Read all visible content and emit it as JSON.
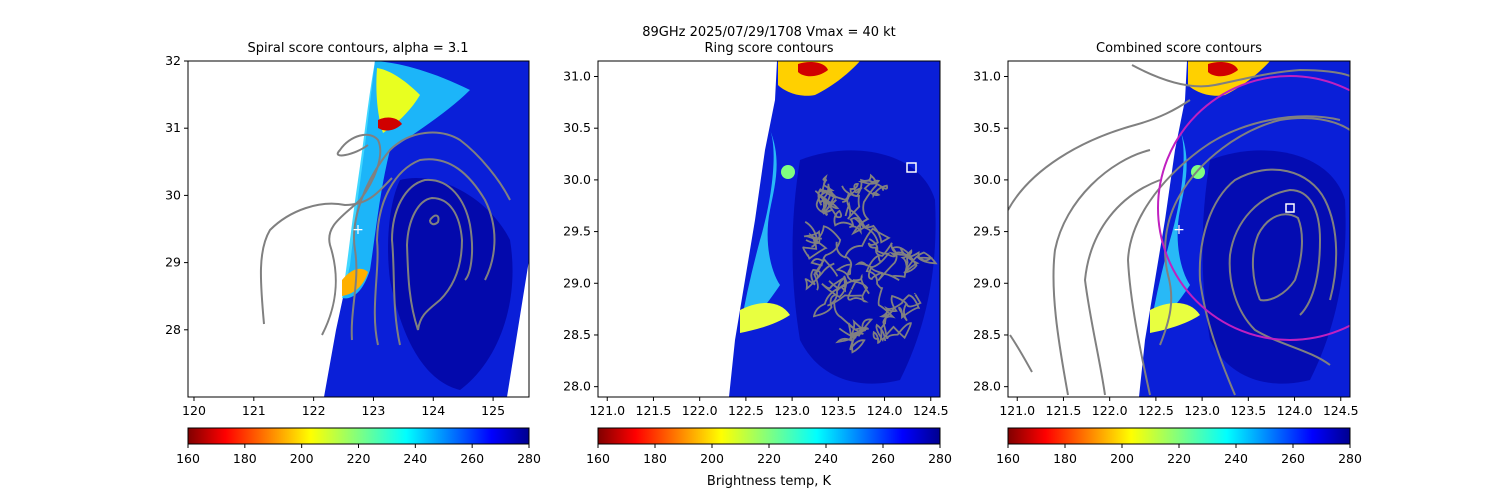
{
  "figure": {
    "suptitle_line1": "89GHz  2025/07/29/1708    Vmax = 40 kt",
    "colorbar_label": "Brightness temp, K"
  },
  "colors": {
    "contour": "#808080",
    "ring": "#c020c0",
    "marker": "#ffffff",
    "colormap": "jet_r"
  },
  "chart_data": [
    {
      "type": "heatmap",
      "title": "Spiral score contours, alpha =  3.1",
      "xlim": [
        119.9,
        125.6
      ],
      "ylim": [
        27.0,
        32.0
      ],
      "xticks": [
        "120",
        "121",
        "122",
        "123",
        "124",
        "125"
      ],
      "yticks": [
        "28",
        "29",
        "30",
        "31",
        "32"
      ],
      "colorbar": {
        "min": 160,
        "max": 280,
        "ticks": [
          "160",
          "180",
          "200",
          "220",
          "240",
          "260",
          "280"
        ]
      },
      "field": "89GHz brightness temperature (K)",
      "overlay": "spiral score contours",
      "center_marker": {
        "symbol": "plus",
        "x": 122.73,
        "y": 29.51
      }
    },
    {
      "type": "heatmap",
      "title": "Ring score contours",
      "xlim": [
        120.9,
        124.6
      ],
      "ylim": [
        27.9,
        31.15
      ],
      "xticks": [
        "121.0",
        "121.5",
        "122.0",
        "122.5",
        "123.0",
        "123.5",
        "124.0",
        "124.5"
      ],
      "yticks": [
        "28.0",
        "28.5",
        "29.0",
        "29.5",
        "30.0",
        "30.5",
        "31.0"
      ],
      "colorbar": {
        "min": 160,
        "max": 280,
        "ticks": [
          "160",
          "180",
          "200",
          "220",
          "240",
          "260",
          "280"
        ]
      },
      "field": "89GHz brightness temperature (K)",
      "overlay": "ring score contours",
      "max_marker": {
        "symbol": "square",
        "x": 124.3,
        "y": 30.12
      }
    },
    {
      "type": "heatmap",
      "title": "Combined score contours",
      "xlim": [
        120.9,
        124.6
      ],
      "ylim": [
        27.9,
        31.15
      ],
      "xticks": [
        "121.0",
        "121.5",
        "122.0",
        "122.5",
        "123.0",
        "123.5",
        "124.0",
        "124.5"
      ],
      "yticks": [
        "28.0",
        "28.5",
        "29.0",
        "29.5",
        "30.0",
        "30.5",
        "31.0"
      ],
      "colorbar": {
        "min": 160,
        "max": 280,
        "ticks": [
          "160",
          "180",
          "200",
          "220",
          "240",
          "260",
          "280"
        ]
      },
      "field": "89GHz brightness temperature (K)",
      "overlay": "combined score contours",
      "center_marker": {
        "symbol": "plus",
        "x": 122.73,
        "y": 29.51
      },
      "max_marker": {
        "symbol": "square",
        "x": 123.95,
        "y": 29.72
      },
      "ring": {
        "center_x": 123.95,
        "center_y": 29.72,
        "radius_deg": 1.24
      }
    }
  ]
}
